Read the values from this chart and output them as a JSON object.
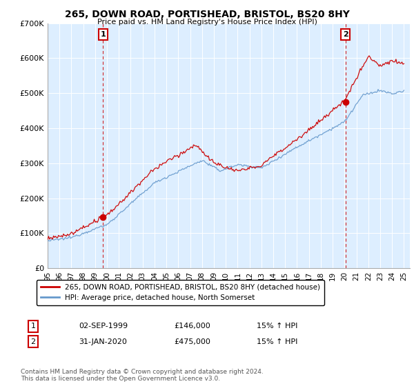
{
  "title": "265, DOWN ROAD, PORTISHEAD, BRISTOL, BS20 8HY",
  "subtitle": "Price paid vs. HM Land Registry's House Price Index (HPI)",
  "legend_line1": "265, DOWN ROAD, PORTISHEAD, BRISTOL, BS20 8HY (detached house)",
  "legend_line2": "HPI: Average price, detached house, North Somerset",
  "annotation1_label": "1",
  "annotation1_date": "02-SEP-1999",
  "annotation1_price": "£146,000",
  "annotation1_note": "15% ↑ HPI",
  "annotation2_label": "2",
  "annotation2_date": "31-JAN-2020",
  "annotation2_price": "£475,000",
  "annotation2_note": "15% ↑ HPI",
  "footer": "Contains HM Land Registry data © Crown copyright and database right 2024.\nThis data is licensed under the Open Government Licence v3.0.",
  "red_color": "#cc0000",
  "blue_color": "#6699cc",
  "bg_color": "#ddeeff",
  "ylim": [
    0,
    700000
  ],
  "yticks": [
    0,
    100000,
    200000,
    300000,
    400000,
    500000,
    600000,
    700000
  ],
  "ytick_labels": [
    "£0",
    "£100K",
    "£200K",
    "£300K",
    "£400K",
    "£500K",
    "£600K",
    "£700K"
  ],
  "sale1_x": 1999.67,
  "sale1_y": 146000,
  "sale2_x": 2020.08,
  "sale2_y": 475000,
  "xlim_start": 1995.0,
  "xlim_end": 2025.5
}
